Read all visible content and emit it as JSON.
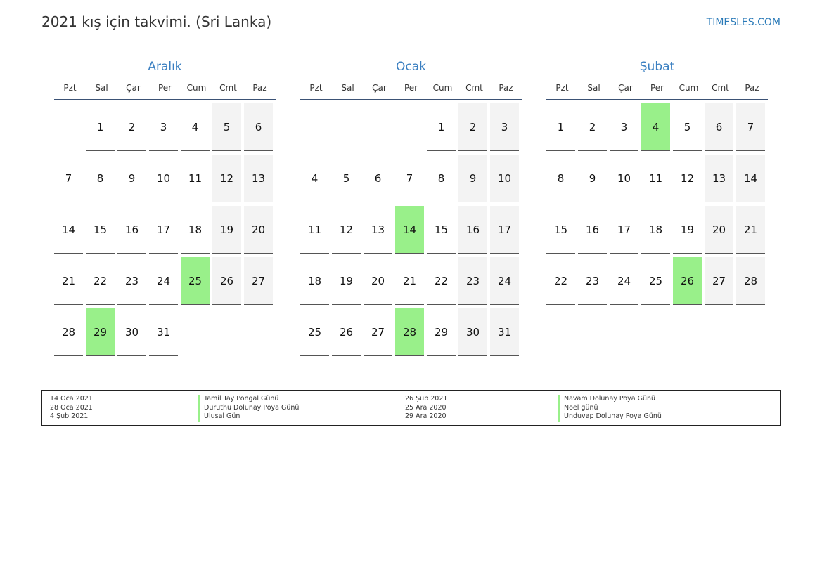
{
  "header": {
    "title": "2021 kış için takvimi. (Sri Lanka)",
    "brand": "TIMESLES.COM"
  },
  "colors": {
    "accent": "#3a7fc1",
    "holiday": "#99f08a",
    "weekend": "#f3f3f3",
    "header_rule": "#3b5275"
  },
  "weekdays": [
    "Pzt",
    "Sal",
    "Çar",
    "Per",
    "Cum",
    "Cmt",
    "Paz"
  ],
  "months": [
    {
      "name": "Aralık",
      "weeks": [
        [
          "",
          "1",
          "2",
          "3",
          "4",
          "5",
          "6"
        ],
        [
          "7",
          "8",
          "9",
          "10",
          "11",
          "12",
          "13"
        ],
        [
          "14",
          "15",
          "16",
          "17",
          "18",
          "19",
          "20"
        ],
        [
          "21",
          "22",
          "23",
          "24",
          "25",
          "26",
          "27"
        ],
        [
          "28",
          "29",
          "30",
          "31",
          "",
          "",
          ""
        ]
      ],
      "holidays": [
        "25",
        "29"
      ]
    },
    {
      "name": "Ocak",
      "weeks": [
        [
          "",
          "",
          "",
          "",
          "1",
          "2",
          "3"
        ],
        [
          "4",
          "5",
          "6",
          "7",
          "8",
          "9",
          "10"
        ],
        [
          "11",
          "12",
          "13",
          "14",
          "15",
          "16",
          "17"
        ],
        [
          "18",
          "19",
          "20",
          "21",
          "22",
          "23",
          "24"
        ],
        [
          "25",
          "26",
          "27",
          "28",
          "29",
          "30",
          "31"
        ]
      ],
      "holidays": [
        "14",
        "28"
      ]
    },
    {
      "name": "Şubat",
      "weeks": [
        [
          "1",
          "2",
          "3",
          "4",
          "5",
          "6",
          "7"
        ],
        [
          "8",
          "9",
          "10",
          "11",
          "12",
          "13",
          "14"
        ],
        [
          "15",
          "16",
          "17",
          "18",
          "19",
          "20",
          "21"
        ],
        [
          "22",
          "23",
          "24",
          "25",
          "26",
          "27",
          "28"
        ]
      ],
      "holidays": [
        "4",
        "26"
      ]
    }
  ],
  "legend": [
    {
      "date": "14 Oca 2021",
      "name": "Tamil Tay Pongal Günü"
    },
    {
      "date": "28 Oca 2021",
      "name": "Duruthu Dolunay Poya Günü"
    },
    {
      "date": "4 Şub 2021",
      "name": "Ulusal Gün"
    },
    {
      "date": "26 Şub 2021",
      "name": "Navam Dolunay Poya Günü"
    },
    {
      "date": "25 Ara 2020",
      "name": "Noel günü"
    },
    {
      "date": "29 Ara 2020",
      "name": "Unduvap Dolunay Poya Günü"
    }
  ]
}
